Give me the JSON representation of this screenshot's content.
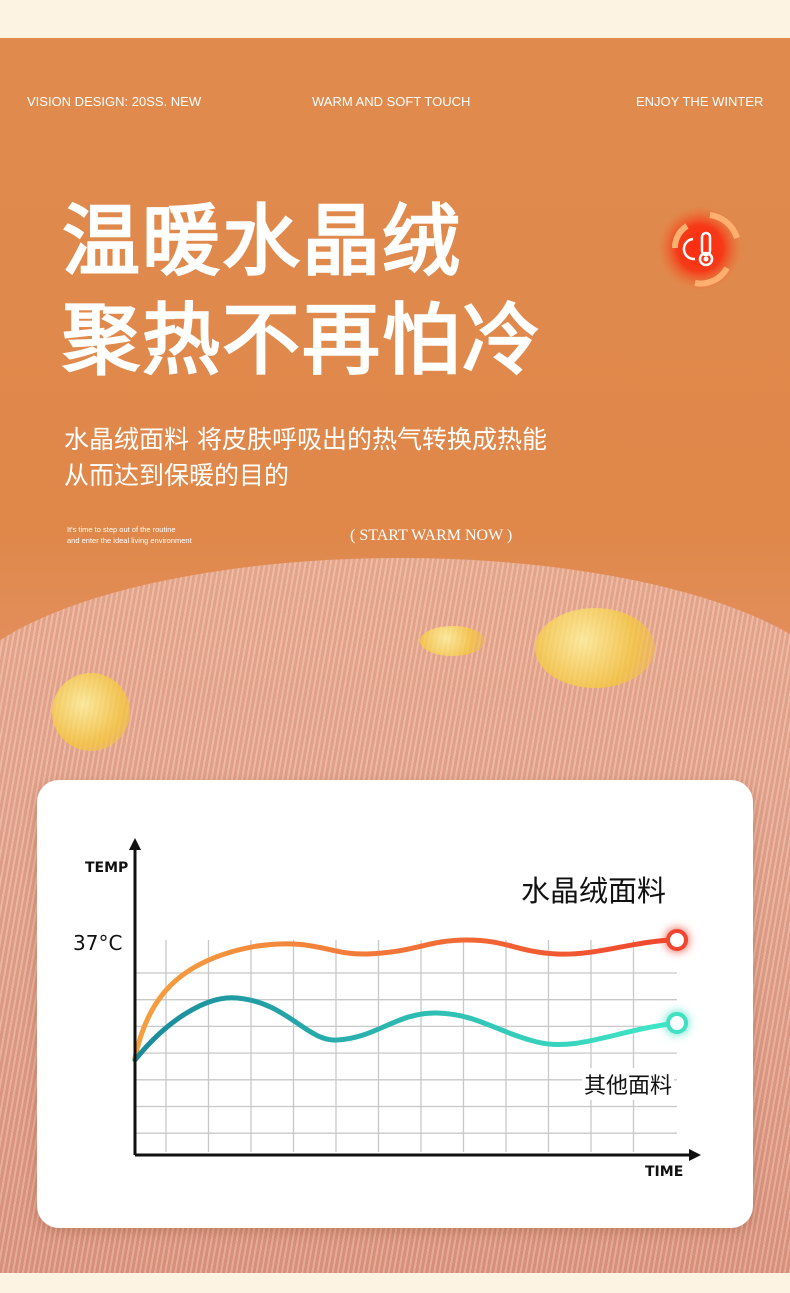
{
  "header": {
    "tag_left": "VISION DESIGN: 20SS. NEW",
    "tag_center": "WARM AND SOFT TOUCH",
    "tag_right": "ENJOY THE WINTER"
  },
  "headline": {
    "line1": "温暖水晶绒",
    "line2": "聚热不再怕冷"
  },
  "description": {
    "line1": "水晶绒面料 将皮肤呼吸出的热气转换成热能",
    "line2": "从而达到保暖的目的"
  },
  "small_text": {
    "line1": "It's time to step out of the routine",
    "line2": "and enter the ideal living environment"
  },
  "cta": "( START WARM NOW )",
  "badge_icon": "thermometer-sun-cycle-icon",
  "chart": {
    "y_label": "TEMP",
    "x_label": "TIME",
    "y_marker": "37°C",
    "series": [
      {
        "name": "水晶绒面料",
        "color": "#f0884a",
        "end_color": "#f04a3a"
      },
      {
        "name": "其他面料",
        "color": "#1e9a9a",
        "end_color": "#40e0c0"
      }
    ]
  },
  "colors": {
    "accent": "#e0884a",
    "card": "#ffffff"
  }
}
